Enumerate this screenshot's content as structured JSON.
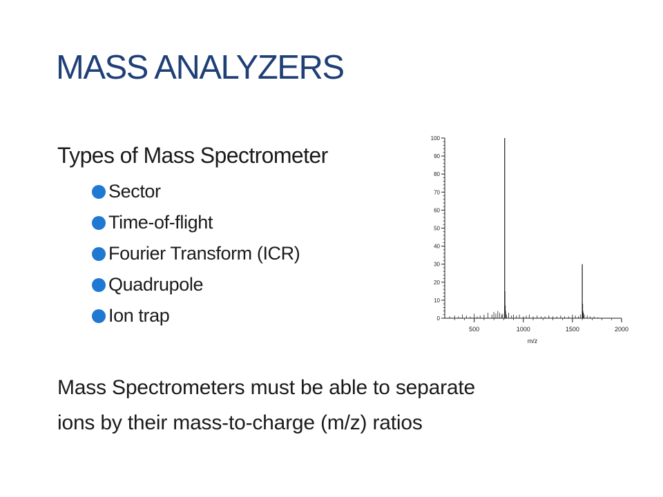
{
  "slide": {
    "title": "MASS ANALYZERS",
    "title_color": "#1f3f77",
    "subheading": "Types of Mass Spectrometer",
    "bullet_color": "#1f78d1",
    "bullets": [
      {
        "label": "Sector"
      },
      {
        "label": "Time-of-flight"
      },
      {
        "label": "Fourier Transform (ICR)"
      },
      {
        "label": "Quadrupole"
      },
      {
        "label": "Ion trap"
      }
    ],
    "statement_lines": [
      "Mass Spectrometers must be able to separate",
      "ions by their mass-to-charge (m/z) ratios"
    ]
  },
  "chart_data": {
    "type": "bar",
    "title": "",
    "xlabel": "m/z",
    "ylabel": "",
    "xlim": [
      200,
      2000
    ],
    "ylim": [
      0,
      100
    ],
    "x_ticks": [
      500,
      1000,
      1500,
      2000
    ],
    "y_ticks": [
      0,
      10,
      20,
      30,
      40,
      50,
      60,
      70,
      80,
      90,
      100
    ],
    "grid": false,
    "series": [
      {
        "x": [
          810,
          812,
          815,
          818,
          1600,
          1603,
          1606,
          1610
        ],
        "values": [
          100,
          15,
          7,
          4,
          30,
          8,
          4,
          3
        ]
      }
    ],
    "noise_peaks": {
      "x": [
        250,
        300,
        340,
        380,
        420,
        460,
        500,
        530,
        560,
        600,
        640,
        680,
        700,
        720,
        740,
        760,
        780,
        790,
        830,
        850,
        880,
        900,
        930,
        960,
        1000,
        1030,
        1060,
        1100,
        1140,
        1180,
        1220,
        1260,
        1300,
        1340,
        1380,
        1420,
        1460,
        1500,
        1530,
        1560,
        1580,
        1620,
        1650,
        1680,
        1720,
        1760
      ],
      "values": [
        1,
        1.5,
        1,
        2,
        1.5,
        1,
        2.5,
        1,
        1.5,
        2,
        3,
        2,
        3.5,
        2.5,
        4,
        3,
        2,
        2.5,
        2,
        3,
        1.5,
        2,
        1.5,
        2,
        1,
        1.5,
        2,
        1,
        1.5,
        1,
        1,
        1.5,
        1,
        1,
        1.5,
        1,
        1,
        2,
        1.5,
        1,
        2,
        2,
        1.5,
        1,
        1,
        0.5
      ]
    },
    "color": "#1a1a1a"
  }
}
